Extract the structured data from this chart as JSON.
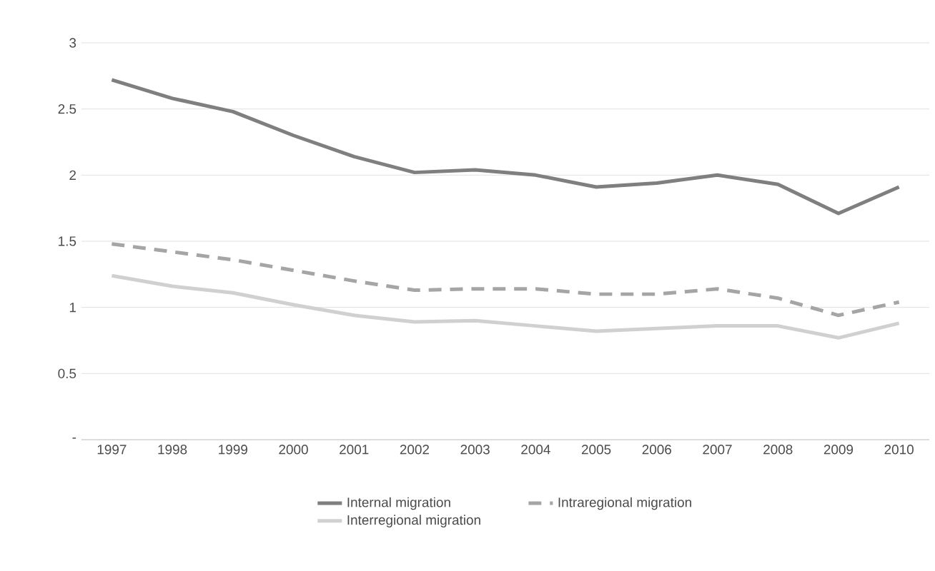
{
  "chart_data": {
    "type": "line",
    "categories": [
      "1997",
      "1998",
      "1999",
      "2000",
      "2001",
      "2002",
      "2003",
      "2004",
      "2005",
      "2006",
      "2007",
      "2008",
      "2009",
      "2010"
    ],
    "series": [
      {
        "name": "Internal migration",
        "color": "#7f7f7f",
        "line_style": "solid",
        "values": [
          2.72,
          2.58,
          2.48,
          2.3,
          2.14,
          2.02,
          2.04,
          2.0,
          1.91,
          1.94,
          2.0,
          1.93,
          1.71,
          1.91
        ]
      },
      {
        "name": "Intraregional migration",
        "color": "#a5a5a5",
        "line_style": "dashed",
        "values": [
          1.48,
          1.42,
          1.36,
          1.28,
          1.2,
          1.13,
          1.14,
          1.14,
          1.1,
          1.1,
          1.14,
          1.07,
          0.94,
          1.04
        ]
      },
      {
        "name": "Interregional migration",
        "color": "#d0d0d0",
        "line_style": "solid",
        "values": [
          1.24,
          1.16,
          1.11,
          1.02,
          0.94,
          0.89,
          0.9,
          0.86,
          0.82,
          0.84,
          0.86,
          0.86,
          0.77,
          0.88
        ]
      }
    ],
    "ylim": [
      0,
      3
    ],
    "yticks": [
      {
        "value": 0,
        "label": "-"
      },
      0.5,
      1,
      1.5,
      2,
      2.5,
      3
    ],
    "grid": "y",
    "legend": "bottom"
  }
}
